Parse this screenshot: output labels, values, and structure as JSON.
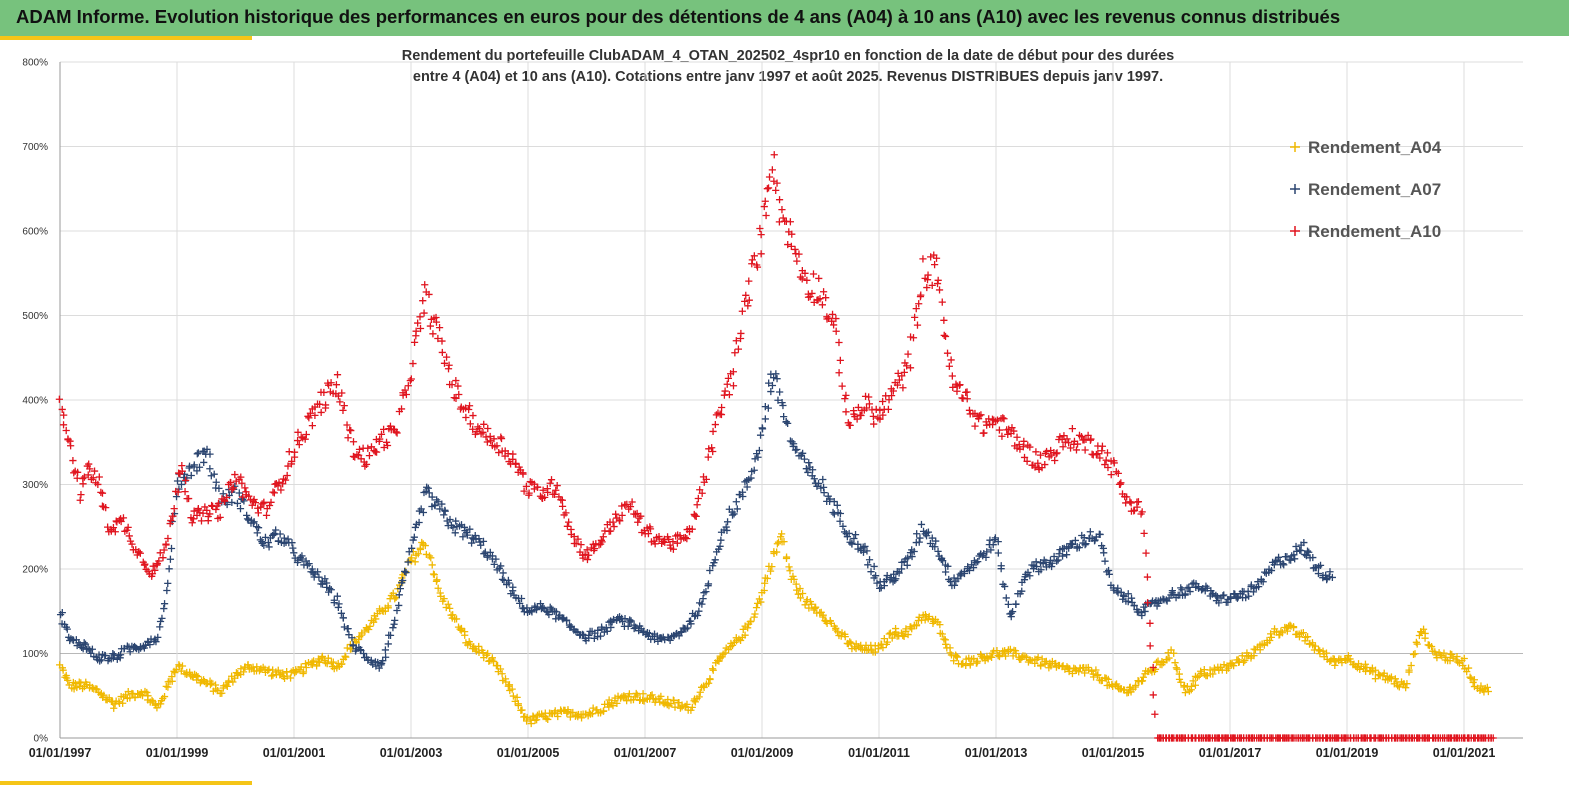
{
  "header": {
    "title": "ADAM Informe. Evolution historique des performances en euros pour des détentions de 4 ans (A04) à 10 ans (A10) avec les revenus connus distribués"
  },
  "chart_data": {
    "type": "scatter",
    "title_lines": [
      "Rendement du portefeuille ClubADAM_4_OTAN_202502_4spr10  en fonction de la date de début pour des durées",
      "entre 4 (A04) et 10 ans (A10). Cotations entre janv 1997 et août 2025. Revenus DISTRIBUES depuis janv 1997."
    ],
    "xlabel": "",
    "ylabel": "",
    "x_range": [
      "01/01/1997",
      "01/07/2021"
    ],
    "ylim": [
      0,
      800
    ],
    "y_ticks": [
      "0%",
      "100%",
      "200%",
      "300%",
      "400%",
      "500%",
      "600%",
      "700%",
      "800%"
    ],
    "x_ticks": [
      "01/01/1997",
      "01/01/1999",
      "01/01/2001",
      "01/01/2003",
      "01/01/2005",
      "01/01/2007",
      "01/01/2009",
      "01/01/2011",
      "01/01/2013",
      "01/01/2015",
      "01/01/2017",
      "01/01/2019",
      "01/01/2021"
    ],
    "grid": true,
    "legend_position": "top-right",
    "marker": "+",
    "series": [
      {
        "name": "Rendement_A04",
        "color": "#f0b800",
        "points": [
          [
            "1997-01",
            85
          ],
          [
            "1997-03",
            62
          ],
          [
            "1997-06",
            62
          ],
          [
            "1997-09",
            55
          ],
          [
            "1997-12",
            40
          ],
          [
            "1998-03",
            50
          ],
          [
            "1998-06",
            55
          ],
          [
            "1998-09",
            35
          ],
          [
            "1998-11",
            60
          ],
          [
            "1999-01",
            85
          ],
          [
            "1999-04",
            75
          ],
          [
            "1999-07",
            65
          ],
          [
            "1999-10",
            55
          ],
          [
            "2000-01",
            75
          ],
          [
            "2000-04",
            85
          ],
          [
            "2000-07",
            80
          ],
          [
            "2000-10",
            75
          ],
          [
            "2001-01",
            75
          ],
          [
            "2001-04",
            85
          ],
          [
            "2001-07",
            95
          ],
          [
            "2001-10",
            85
          ],
          [
            "2002-01",
            110
          ],
          [
            "2002-04",
            130
          ],
          [
            "2002-07",
            150
          ],
          [
            "2002-10",
            170
          ],
          [
            "2003-01",
            210
          ],
          [
            "2003-04",
            230
          ],
          [
            "2003-07",
            170
          ],
          [
            "2003-10",
            140
          ],
          [
            "2004-01",
            110
          ],
          [
            "2004-04",
            100
          ],
          [
            "2004-07",
            80
          ],
          [
            "2004-10",
            50
          ],
          [
            "2005-01",
            20
          ],
          [
            "2005-04",
            25
          ],
          [
            "2005-07",
            28
          ],
          [
            "2005-10",
            30
          ],
          [
            "2006-01",
            28
          ],
          [
            "2006-04",
            35
          ],
          [
            "2006-07",
            45
          ],
          [
            "2006-10",
            50
          ],
          [
            "2007-01",
            48
          ],
          [
            "2007-04",
            45
          ],
          [
            "2007-07",
            40
          ],
          [
            "2007-10",
            35
          ],
          [
            "2008-01",
            60
          ],
          [
            "2008-04",
            90
          ],
          [
            "2008-07",
            110
          ],
          [
            "2008-10",
            130
          ],
          [
            "2009-01",
            170
          ],
          [
            "2009-03",
            210
          ],
          [
            "2009-05",
            240
          ],
          [
            "2009-07",
            190
          ],
          [
            "2009-10",
            160
          ],
          [
            "2010-01",
            150
          ],
          [
            "2010-04",
            130
          ],
          [
            "2010-07",
            110
          ],
          [
            "2010-10",
            105
          ],
          [
            "2011-01",
            105
          ],
          [
            "2011-04",
            125
          ],
          [
            "2011-07",
            125
          ],
          [
            "2011-10",
            145
          ],
          [
            "2012-01",
            135
          ],
          [
            "2012-04",
            95
          ],
          [
            "2012-07",
            90
          ],
          [
            "2012-10",
            95
          ],
          [
            "2013-01",
            100
          ],
          [
            "2013-04",
            100
          ],
          [
            "2013-07",
            95
          ],
          [
            "2013-10",
            90
          ],
          [
            "2014-01",
            85
          ],
          [
            "2014-04",
            80
          ],
          [
            "2014-07",
            80
          ],
          [
            "2014-10",
            75
          ],
          [
            "2015-01",
            60
          ],
          [
            "2015-04",
            55
          ],
          [
            "2015-07",
            70
          ],
          [
            "2015-10",
            85
          ],
          [
            "2016-01",
            100
          ],
          [
            "2016-04",
            55
          ],
          [
            "2016-07",
            75
          ],
          [
            "2016-10",
            80
          ],
          [
            "2017-01",
            85
          ],
          [
            "2017-04",
            95
          ],
          [
            "2017-07",
            105
          ],
          [
            "2017-10",
            125
          ],
          [
            "2018-01",
            130
          ],
          [
            "2018-04",
            120
          ],
          [
            "2018-07",
            105
          ],
          [
            "2018-10",
            90
          ],
          [
            "2019-01",
            95
          ],
          [
            "2019-04",
            85
          ],
          [
            "2019-07",
            75
          ],
          [
            "2019-10",
            70
          ],
          [
            "2020-01",
            60
          ],
          [
            "2020-04",
            130
          ],
          [
            "2020-07",
            100
          ],
          [
            "2020-10",
            95
          ],
          [
            "2021-01",
            90
          ],
          [
            "2021-03",
            65
          ],
          [
            "2021-06",
            55
          ]
        ]
      },
      {
        "name": "Rendement_A07",
        "color": "#2b4570",
        "points": [
          [
            "1997-01",
            150
          ],
          [
            "1997-03",
            115
          ],
          [
            "1997-06",
            110
          ],
          [
            "1997-09",
            95
          ],
          [
            "1997-12",
            95
          ],
          [
            "1998-03",
            105
          ],
          [
            "1998-06",
            110
          ],
          [
            "1998-09",
            120
          ],
          [
            "1998-11",
            180
          ],
          [
            "1999-01",
            300
          ],
          [
            "1999-04",
            320
          ],
          [
            "1999-07",
            340
          ],
          [
            "1999-10",
            280
          ],
          [
            "2000-01",
            290
          ],
          [
            "2000-04",
            260
          ],
          [
            "2000-07",
            230
          ],
          [
            "2000-10",
            240
          ],
          [
            "2001-01",
            220
          ],
          [
            "2001-04",
            200
          ],
          [
            "2001-07",
            185
          ],
          [
            "2001-10",
            160
          ],
          [
            "2002-01",
            110
          ],
          [
            "2002-04",
            95
          ],
          [
            "2002-07",
            85
          ],
          [
            "2002-10",
            150
          ],
          [
            "2003-01",
            220
          ],
          [
            "2003-04",
            290
          ],
          [
            "2003-07",
            270
          ],
          [
            "2003-10",
            250
          ],
          [
            "2004-01",
            240
          ],
          [
            "2004-04",
            225
          ],
          [
            "2004-07",
            200
          ],
          [
            "2004-10",
            170
          ],
          [
            "2005-01",
            150
          ],
          [
            "2005-04",
            155
          ],
          [
            "2005-07",
            145
          ],
          [
            "2005-10",
            130
          ],
          [
            "2006-01",
            120
          ],
          [
            "2006-04",
            125
          ],
          [
            "2006-07",
            140
          ],
          [
            "2006-10",
            135
          ],
          [
            "2007-01",
            125
          ],
          [
            "2007-04",
            115
          ],
          [
            "2007-07",
            120
          ],
          [
            "2007-10",
            135
          ],
          [
            "2008-01",
            160
          ],
          [
            "2008-04",
            230
          ],
          [
            "2008-07",
            270
          ],
          [
            "2008-10",
            300
          ],
          [
            "2009-01",
            360
          ],
          [
            "2009-03",
            430
          ],
          [
            "2009-05",
            400
          ],
          [
            "2009-07",
            350
          ],
          [
            "2009-10",
            320
          ],
          [
            "2010-01",
            300
          ],
          [
            "2010-04",
            270
          ],
          [
            "2010-07",
            240
          ],
          [
            "2010-10",
            225
          ],
          [
            "2011-01",
            180
          ],
          [
            "2011-04",
            190
          ],
          [
            "2011-07",
            210
          ],
          [
            "2011-10",
            250
          ],
          [
            "2012-01",
            225
          ],
          [
            "2012-04",
            185
          ],
          [
            "2012-07",
            200
          ],
          [
            "2012-10",
            215
          ],
          [
            "2013-01",
            235
          ],
          [
            "2013-04",
            140
          ],
          [
            "2013-07",
            195
          ],
          [
            "2013-10",
            205
          ],
          [
            "2014-01",
            210
          ],
          [
            "2014-04",
            225
          ],
          [
            "2014-07",
            235
          ],
          [
            "2014-10",
            240
          ],
          [
            "2015-01",
            175
          ],
          [
            "2015-04",
            165
          ],
          [
            "2015-07",
            150
          ],
          [
            "2015-10",
            160
          ],
          [
            "2016-01",
            170
          ],
          [
            "2016-04",
            175
          ],
          [
            "2016-07",
            180
          ],
          [
            "2016-10",
            165
          ],
          [
            "2017-01",
            165
          ],
          [
            "2017-04",
            170
          ],
          [
            "2017-07",
            180
          ],
          [
            "2017-10",
            205
          ],
          [
            "2018-01",
            215
          ],
          [
            "2018-04",
            225
          ],
          [
            "2018-07",
            200
          ],
          [
            "2018-10",
            190
          ]
        ]
      },
      {
        "name": "Rendement_A10",
        "color": "#e0141e",
        "points": [
          [
            "1997-01",
            400
          ],
          [
            "1997-03",
            350
          ],
          [
            "1997-05",
            290
          ],
          [
            "1997-07",
            320
          ],
          [
            "1997-09",
            300
          ],
          [
            "1997-11",
            250
          ],
          [
            "1998-02",
            255
          ],
          [
            "1998-05",
            220
          ],
          [
            "1998-08",
            195
          ],
          [
            "1998-10",
            215
          ],
          [
            "1998-12",
            260
          ],
          [
            "1999-02",
            330
          ],
          [
            "1999-04",
            260
          ],
          [
            "1999-07",
            265
          ],
          [
            "1999-10",
            270
          ],
          [
            "2000-01",
            310
          ],
          [
            "2000-04",
            280
          ],
          [
            "2000-07",
            270
          ],
          [
            "2000-10",
            300
          ],
          [
            "2001-01",
            340
          ],
          [
            "2001-04",
            375
          ],
          [
            "2001-07",
            400
          ],
          [
            "2001-10",
            420
          ],
          [
            "2002-01",
            345
          ],
          [
            "2002-04",
            330
          ],
          [
            "2002-07",
            355
          ],
          [
            "2002-10",
            360
          ],
          [
            "2003-01",
            440
          ],
          [
            "2003-04",
            520
          ],
          [
            "2003-07",
            470
          ],
          [
            "2003-10",
            410
          ],
          [
            "2004-01",
            380
          ],
          [
            "2004-04",
            360
          ],
          [
            "2004-07",
            350
          ],
          [
            "2004-10",
            330
          ],
          [
            "2005-01",
            295
          ],
          [
            "2005-04",
            290
          ],
          [
            "2005-07",
            300
          ],
          [
            "2005-10",
            240
          ],
          [
            "2006-01",
            215
          ],
          [
            "2006-04",
            235
          ],
          [
            "2006-07",
            260
          ],
          [
            "2006-10",
            275
          ],
          [
            "2007-01",
            245
          ],
          [
            "2007-04",
            235
          ],
          [
            "2007-07",
            230
          ],
          [
            "2007-10",
            240
          ],
          [
            "2008-01",
            300
          ],
          [
            "2008-04",
            380
          ],
          [
            "2008-07",
            430
          ],
          [
            "2008-10",
            520
          ],
          [
            "2009-01",
            600
          ],
          [
            "2009-03",
            690
          ],
          [
            "2009-05",
            620
          ],
          [
            "2009-07",
            590
          ],
          [
            "2009-10",
            540
          ],
          [
            "2010-01",
            530
          ],
          [
            "2010-04",
            480
          ],
          [
            "2010-07",
            370
          ],
          [
            "2010-10",
            395
          ],
          [
            "2011-01",
            380
          ],
          [
            "2011-04",
            410
          ],
          [
            "2011-07",
            440
          ],
          [
            "2011-10",
            550
          ],
          [
            "2012-01",
            555
          ],
          [
            "2012-04",
            420
          ],
          [
            "2012-07",
            400
          ],
          [
            "2012-10",
            370
          ],
          [
            "2013-01",
            375
          ],
          [
            "2013-04",
            360
          ],
          [
            "2013-07",
            340
          ],
          [
            "2013-10",
            325
          ],
          [
            "2014-01",
            340
          ],
          [
            "2014-04",
            355
          ],
          [
            "2014-07",
            350
          ],
          [
            "2014-10",
            345
          ],
          [
            "2015-01",
            320
          ],
          [
            "2015-04",
            280
          ],
          [
            "2015-07",
            270
          ],
          [
            "2015-10",
            0
          ],
          [
            "2016-04",
            0
          ],
          [
            "2016-10",
            0
          ],
          [
            "2017-04",
            0
          ],
          [
            "2017-10",
            0
          ],
          [
            "2018-04",
            0
          ],
          [
            "2018-10",
            0
          ],
          [
            "2019-04",
            0
          ],
          [
            "2019-10",
            0
          ],
          [
            "2020-04",
            0
          ],
          [
            "2020-10",
            0
          ],
          [
            "2021-04",
            0
          ],
          [
            "2021-07",
            0
          ]
        ]
      }
    ]
  }
}
